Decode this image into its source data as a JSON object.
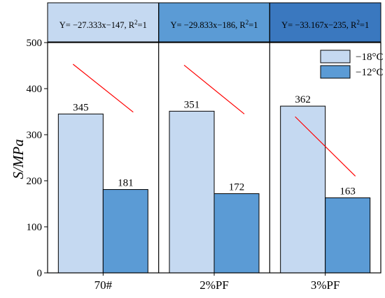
{
  "chart_data": {
    "type": "bar",
    "ylabel": "S/MPa",
    "ylim": [
      0,
      500
    ],
    "yticks": [
      0,
      100,
      200,
      300,
      400,
      500
    ],
    "categories": [
      "70#",
      "2%PF",
      "3%PF"
    ],
    "series": [
      {
        "name": "−18°C",
        "values": [
          345,
          351,
          362
        ],
        "color": "#c5d9f1"
      },
      {
        "name": "−12°C",
        "values": [
          181,
          172,
          163
        ],
        "color": "#5b9bd5"
      }
    ],
    "panel_labels": [
      {
        "text": "Y= −27.333x−147, R",
        "sup": "2",
        "tail": "=1",
        "color": "#c5d9f1"
      },
      {
        "text": "Y= −29.833x−186, R",
        "sup": "2",
        "tail": "=1",
        "color": "#5b9bd5"
      },
      {
        "text": "Y= −33.167x−235, R",
        "sup": "2",
        "tail": "=1",
        "color": "#3a78bf"
      }
    ],
    "trend_lines": [
      {
        "y_start": 453,
        "y_end": 349
      },
      {
        "y_start": 451,
        "y_end": 345
      },
      {
        "y_start": 339,
        "y_end": 210
      }
    ],
    "trend_color": "#ff0000",
    "legend_position": "top-right",
    "grid": false
  }
}
